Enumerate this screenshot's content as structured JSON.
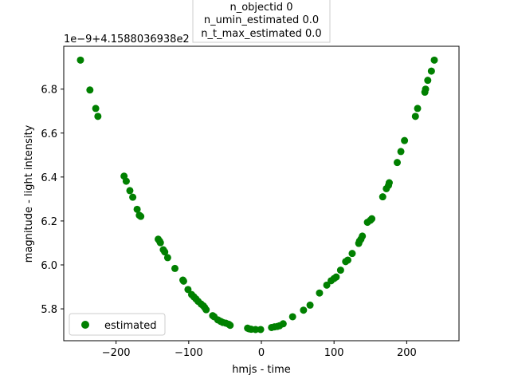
{
  "chart_data": {
    "type": "scatter",
    "title_lines": [
      "n_objectid 0",
      "n_umin_estimated 0.0",
      "n_t_max_estimated 0.0"
    ],
    "xlabel": "hmjs - time",
    "ylabel": "magnitude - light intensity",
    "y_offset_label": "1e−9+4.1588036938e2",
    "xlim": [
      -272,
      272
    ],
    "ylim": [
      5.655,
      6.995
    ],
    "xticks": [
      -200,
      -100,
      0,
      100,
      200
    ],
    "xtick_labels": [
      "−200",
      "−100",
      "0",
      "100",
      "200"
    ],
    "yticks": [
      5.8,
      6.0,
      6.2,
      6.4,
      6.6,
      6.8
    ],
    "ytick_labels": [
      "5.8",
      "6.0",
      "6.2",
      "6.4",
      "6.6",
      "6.8"
    ],
    "grid": false,
    "legend_position": "lower left",
    "series": [
      {
        "name": "estimated",
        "color": "#008000",
        "marker": "circle",
        "x": [
          -249,
          -236,
          -228,
          -225,
          -189,
          -186,
          -181,
          -177,
          -171,
          -168,
          -166,
          -142,
          -140,
          -139,
          -135,
          -133,
          -129,
          -119,
          -108,
          -107,
          -101,
          -96,
          -93,
          -90,
          -87,
          -83,
          -80,
          -78,
          -76,
          -67,
          -65,
          -60,
          -56,
          -53,
          -49,
          -45,
          -43,
          -19,
          -17,
          -14,
          -8,
          -1,
          14,
          18,
          22,
          25,
          30,
          43,
          58,
          67,
          80,
          90,
          96,
          100,
          103,
          109,
          116,
          119,
          125,
          134,
          135,
          137,
          139,
          146,
          150,
          152,
          167,
          172,
          175,
          176,
          187,
          192,
          197,
          212,
          215,
          225,
          226,
          229,
          234,
          238
        ],
        "y": [
          6.932,
          6.796,
          6.712,
          6.676,
          6.404,
          6.381,
          6.338,
          6.308,
          6.253,
          6.226,
          6.221,
          6.117,
          6.108,
          6.101,
          6.069,
          6.059,
          6.033,
          5.984,
          5.931,
          5.926,
          5.888,
          5.865,
          5.855,
          5.845,
          5.834,
          5.822,
          5.814,
          5.806,
          5.796,
          5.769,
          5.764,
          5.75,
          5.743,
          5.738,
          5.735,
          5.73,
          5.725,
          5.712,
          5.709,
          5.707,
          5.706,
          5.706,
          5.715,
          5.718,
          5.72,
          5.723,
          5.732,
          5.764,
          5.794,
          5.817,
          5.872,
          5.908,
          5.928,
          5.938,
          5.945,
          5.976,
          6.015,
          6.022,
          6.052,
          6.098,
          6.108,
          6.117,
          6.131,
          6.194,
          6.203,
          6.21,
          6.31,
          6.347,
          6.362,
          6.374,
          6.466,
          6.516,
          6.566,
          6.676,
          6.712,
          6.786,
          6.8,
          6.84,
          6.882,
          6.932
        ]
      }
    ]
  }
}
